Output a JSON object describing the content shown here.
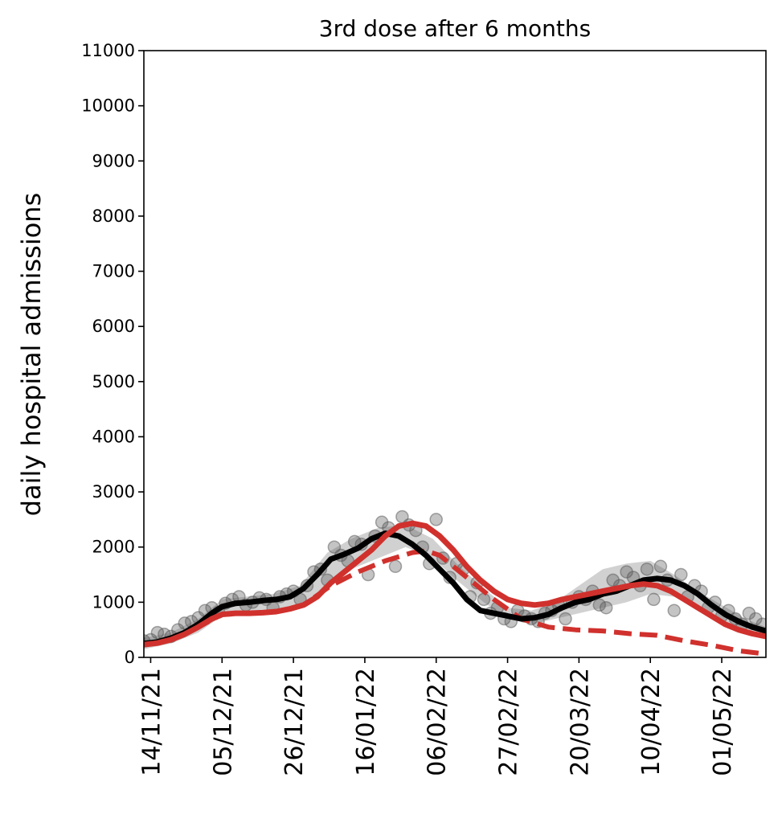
{
  "chart_data": {
    "type": "line",
    "title": "3rd dose after 6 months",
    "xlabel": "",
    "ylabel": "daily hospital admissions",
    "ylim": [
      0,
      11000
    ],
    "xlim": [
      "2021-11-12",
      "2022-05-14"
    ],
    "yticks": [
      0,
      1000,
      2000,
      3000,
      4000,
      5000,
      6000,
      7000,
      8000,
      9000,
      10000,
      11000
    ],
    "xtick_dates": [
      "2021-11-14",
      "2021-12-05",
      "2021-12-26",
      "2022-01-16",
      "2022-02-06",
      "2022-02-27",
      "2022-03-20",
      "2022-04-10",
      "2022-05-01"
    ],
    "xtick_labels": [
      "14/11/21",
      "05/12/21",
      "26/12/21",
      "16/01/22",
      "06/02/22",
      "27/02/22",
      "20/03/22",
      "10/04/22",
      "01/05/22"
    ],
    "grid": false,
    "colors": {
      "model_fit": "#000000",
      "uncertainty_band": "#bdbdbd",
      "observed_points": "#555555",
      "scenario": "#d0312d"
    },
    "series": [
      {
        "style": "band",
        "x": [
          "2021-11-12",
          "2021-11-20",
          "2021-11-28",
          "2021-12-05",
          "2021-12-12",
          "2021-12-20",
          "2021-12-28",
          "2022-01-05",
          "2022-01-12",
          "2022-01-20",
          "2022-01-28",
          "2022-02-05",
          "2022-02-12",
          "2022-02-20",
          "2022-02-27",
          "2022-03-06",
          "2022-03-13",
          "2022-03-20",
          "2022-03-27",
          "2022-04-03",
          "2022-04-10",
          "2022-04-17",
          "2022-04-24",
          "2022-05-01",
          "2022-05-08",
          "2022-05-14"
        ],
        "lower": [
          150,
          250,
          450,
          750,
          800,
          850,
          950,
          1300,
          1600,
          1800,
          2000,
          1800,
          1400,
          1000,
          700,
          600,
          700,
          800,
          900,
          1000,
          1150,
          1100,
          900,
          650,
          500,
          400
        ],
        "upper": [
          350,
          450,
          700,
          1050,
          1100,
          1150,
          1300,
          1900,
          2150,
          2350,
          2400,
          2150,
          1700,
          1250,
          900,
          850,
          1000,
          1300,
          1600,
          1700,
          1750,
          1500,
          1200,
          950,
          700,
          550
        ]
      },
      {
        "style": "solid",
        "color": "#000000",
        "x": [
          "2021-11-12",
          "2021-11-16",
          "2021-11-20",
          "2021-11-24",
          "2021-11-28",
          "2021-12-02",
          "2021-12-05",
          "2021-12-09",
          "2021-12-13",
          "2021-12-17",
          "2021-12-21",
          "2021-12-25",
          "2021-12-29",
          "2022-01-02",
          "2022-01-06",
          "2022-01-10",
          "2022-01-14",
          "2022-01-18",
          "2022-01-22",
          "2022-01-26",
          "2022-01-30",
          "2022-02-03",
          "2022-02-07",
          "2022-02-11",
          "2022-02-15",
          "2022-02-19",
          "2022-02-23",
          "2022-02-27",
          "2022-03-03",
          "2022-03-07",
          "2022-03-11",
          "2022-03-15",
          "2022-03-19",
          "2022-03-23",
          "2022-03-27",
          "2022-03-31",
          "2022-04-04",
          "2022-04-08",
          "2022-04-12",
          "2022-04-16",
          "2022-04-20",
          "2022-04-24",
          "2022-04-28",
          "2022-05-02",
          "2022-05-06",
          "2022-05-10",
          "2022-05-14"
        ],
        "values": [
          250,
          280,
          350,
          450,
          600,
          800,
          920,
          980,
          1000,
          1030,
          1050,
          1100,
          1250,
          1500,
          1780,
          1870,
          1980,
          2150,
          2250,
          2200,
          2050,
          1850,
          1600,
          1350,
          1050,
          850,
          800,
          750,
          700,
          720,
          780,
          900,
          1000,
          1050,
          1150,
          1200,
          1300,
          1400,
          1430,
          1400,
          1300,
          1150,
          950,
          780,
          650,
          550,
          480
        ]
      },
      {
        "style": "solid",
        "color": "#d0312d",
        "x": [
          "2021-11-12",
          "2021-11-16",
          "2021-11-20",
          "2021-11-24",
          "2021-11-28",
          "2021-12-02",
          "2021-12-05",
          "2021-12-09",
          "2021-12-13",
          "2021-12-17",
          "2021-12-21",
          "2021-12-25",
          "2021-12-29",
          "2022-01-02",
          "2022-01-06",
          "2022-01-10",
          "2022-01-14",
          "2022-01-18",
          "2022-01-22",
          "2022-01-26",
          "2022-01-30",
          "2022-02-03",
          "2022-02-07",
          "2022-02-11",
          "2022-02-15",
          "2022-02-19",
          "2022-02-23",
          "2022-02-27",
          "2022-03-03",
          "2022-03-07",
          "2022-03-11",
          "2022-03-15",
          "2022-03-19",
          "2022-03-23",
          "2022-03-27",
          "2022-03-31",
          "2022-04-04",
          "2022-04-08",
          "2022-04-12",
          "2022-04-16",
          "2022-04-20",
          "2022-04-24",
          "2022-04-28",
          "2022-05-02",
          "2022-05-06",
          "2022-05-10",
          "2022-05-14"
        ],
        "values": [
          230,
          260,
          320,
          420,
          550,
          700,
          780,
          800,
          800,
          810,
          830,
          880,
          950,
          1100,
          1350,
          1550,
          1750,
          1950,
          2200,
          2380,
          2430,
          2380,
          2200,
          1950,
          1650,
          1400,
          1200,
          1050,
          980,
          950,
          980,
          1050,
          1100,
          1150,
          1200,
          1250,
          1300,
          1330,
          1300,
          1200,
          1050,
          900,
          750,
          600,
          500,
          430,
          380
        ]
      },
      {
        "style": "dashed",
        "color": "#d0312d",
        "x": [
          "2021-11-12",
          "2021-11-20",
          "2021-11-28",
          "2021-12-05",
          "2021-12-13",
          "2021-12-21",
          "2021-12-29",
          "2022-01-06",
          "2022-01-14",
          "2022-01-22",
          "2022-01-30",
          "2022-02-03",
          "2022-02-07",
          "2022-02-15",
          "2022-02-23",
          "2022-03-03",
          "2022-03-11",
          "2022-03-19",
          "2022-03-27",
          "2022-04-04",
          "2022-04-12",
          "2022-04-20",
          "2022-04-28",
          "2022-05-06",
          "2022-05-14"
        ],
        "values": [
          230,
          320,
          550,
          780,
          800,
          830,
          950,
          1300,
          1550,
          1750,
          1900,
          1930,
          1850,
          1450,
          1050,
          700,
          550,
          500,
          480,
          430,
          400,
          300,
          220,
          120,
          60
        ]
      }
    ],
    "observed": {
      "style": "scatter",
      "x": [
        "2021-11-12",
        "2021-11-14",
        "2021-11-16",
        "2021-11-18",
        "2021-11-20",
        "2021-11-22",
        "2021-11-24",
        "2021-11-26",
        "2021-11-28",
        "2021-11-30",
        "2021-12-02",
        "2021-12-04",
        "2021-12-06",
        "2021-12-08",
        "2021-12-10",
        "2021-12-12",
        "2021-12-14",
        "2021-12-16",
        "2021-12-18",
        "2021-12-20",
        "2021-12-22",
        "2021-12-24",
        "2021-12-26",
        "2021-12-28",
        "2021-12-30",
        "2022-01-01",
        "2022-01-03",
        "2022-01-05",
        "2022-01-07",
        "2022-01-09",
        "2022-01-11",
        "2022-01-13",
        "2022-01-15",
        "2022-01-17",
        "2022-01-19",
        "2022-01-21",
        "2022-01-23",
        "2022-01-25",
        "2022-01-27",
        "2022-01-29",
        "2022-01-31",
        "2022-02-02",
        "2022-02-04",
        "2022-02-06",
        "2022-02-08",
        "2022-02-10",
        "2022-02-12",
        "2022-02-14",
        "2022-02-16",
        "2022-02-18",
        "2022-02-20",
        "2022-02-22",
        "2022-02-24",
        "2022-02-26",
        "2022-02-28",
        "2022-03-02",
        "2022-03-04",
        "2022-03-06",
        "2022-03-08",
        "2022-03-10",
        "2022-03-12",
        "2022-03-14",
        "2022-03-16",
        "2022-03-18",
        "2022-03-20",
        "2022-03-22",
        "2022-03-24",
        "2022-03-26",
        "2022-03-28",
        "2022-03-30",
        "2022-04-01",
        "2022-04-03",
        "2022-04-05",
        "2022-04-07",
        "2022-04-09",
        "2022-04-11",
        "2022-04-13",
        "2022-04-15",
        "2022-04-17",
        "2022-04-19",
        "2022-04-21",
        "2022-04-23",
        "2022-04-25",
        "2022-04-27",
        "2022-04-29",
        "2022-05-01",
        "2022-05-03",
        "2022-05-05",
        "2022-05-07",
        "2022-05-09",
        "2022-05-11",
        "2022-05-13"
      ],
      "values": [
        300,
        320,
        450,
        420,
        380,
        500,
        620,
        650,
        720,
        850,
        900,
        820,
        980,
        1050,
        1100,
        950,
        1000,
        1080,
        1050,
        900,
        1100,
        1150,
        1200,
        1050,
        1300,
        1550,
        1600,
        1400,
        2000,
        1850,
        1750,
        2100,
        2050,
        1500,
        2200,
        2450,
        2350,
        1650,
        2550,
        2400,
        2300,
        2000,
        1700,
        2500,
        1800,
        1450,
        1700,
        1600,
        1100,
        1350,
        1050,
        800,
        900,
        700,
        650,
        850,
        750,
        700,
        650,
        800,
        850,
        950,
        700,
        1000,
        1100,
        1050,
        1200,
        950,
        900,
        1400,
        1300,
        1550,
        1450,
        1300,
        1600,
        1050,
        1650,
        1400,
        850,
        1500,
        1100,
        1300,
        1200,
        900,
        1000,
        750,
        850,
        700,
        600,
        800,
        700,
        600
      ]
    }
  }
}
